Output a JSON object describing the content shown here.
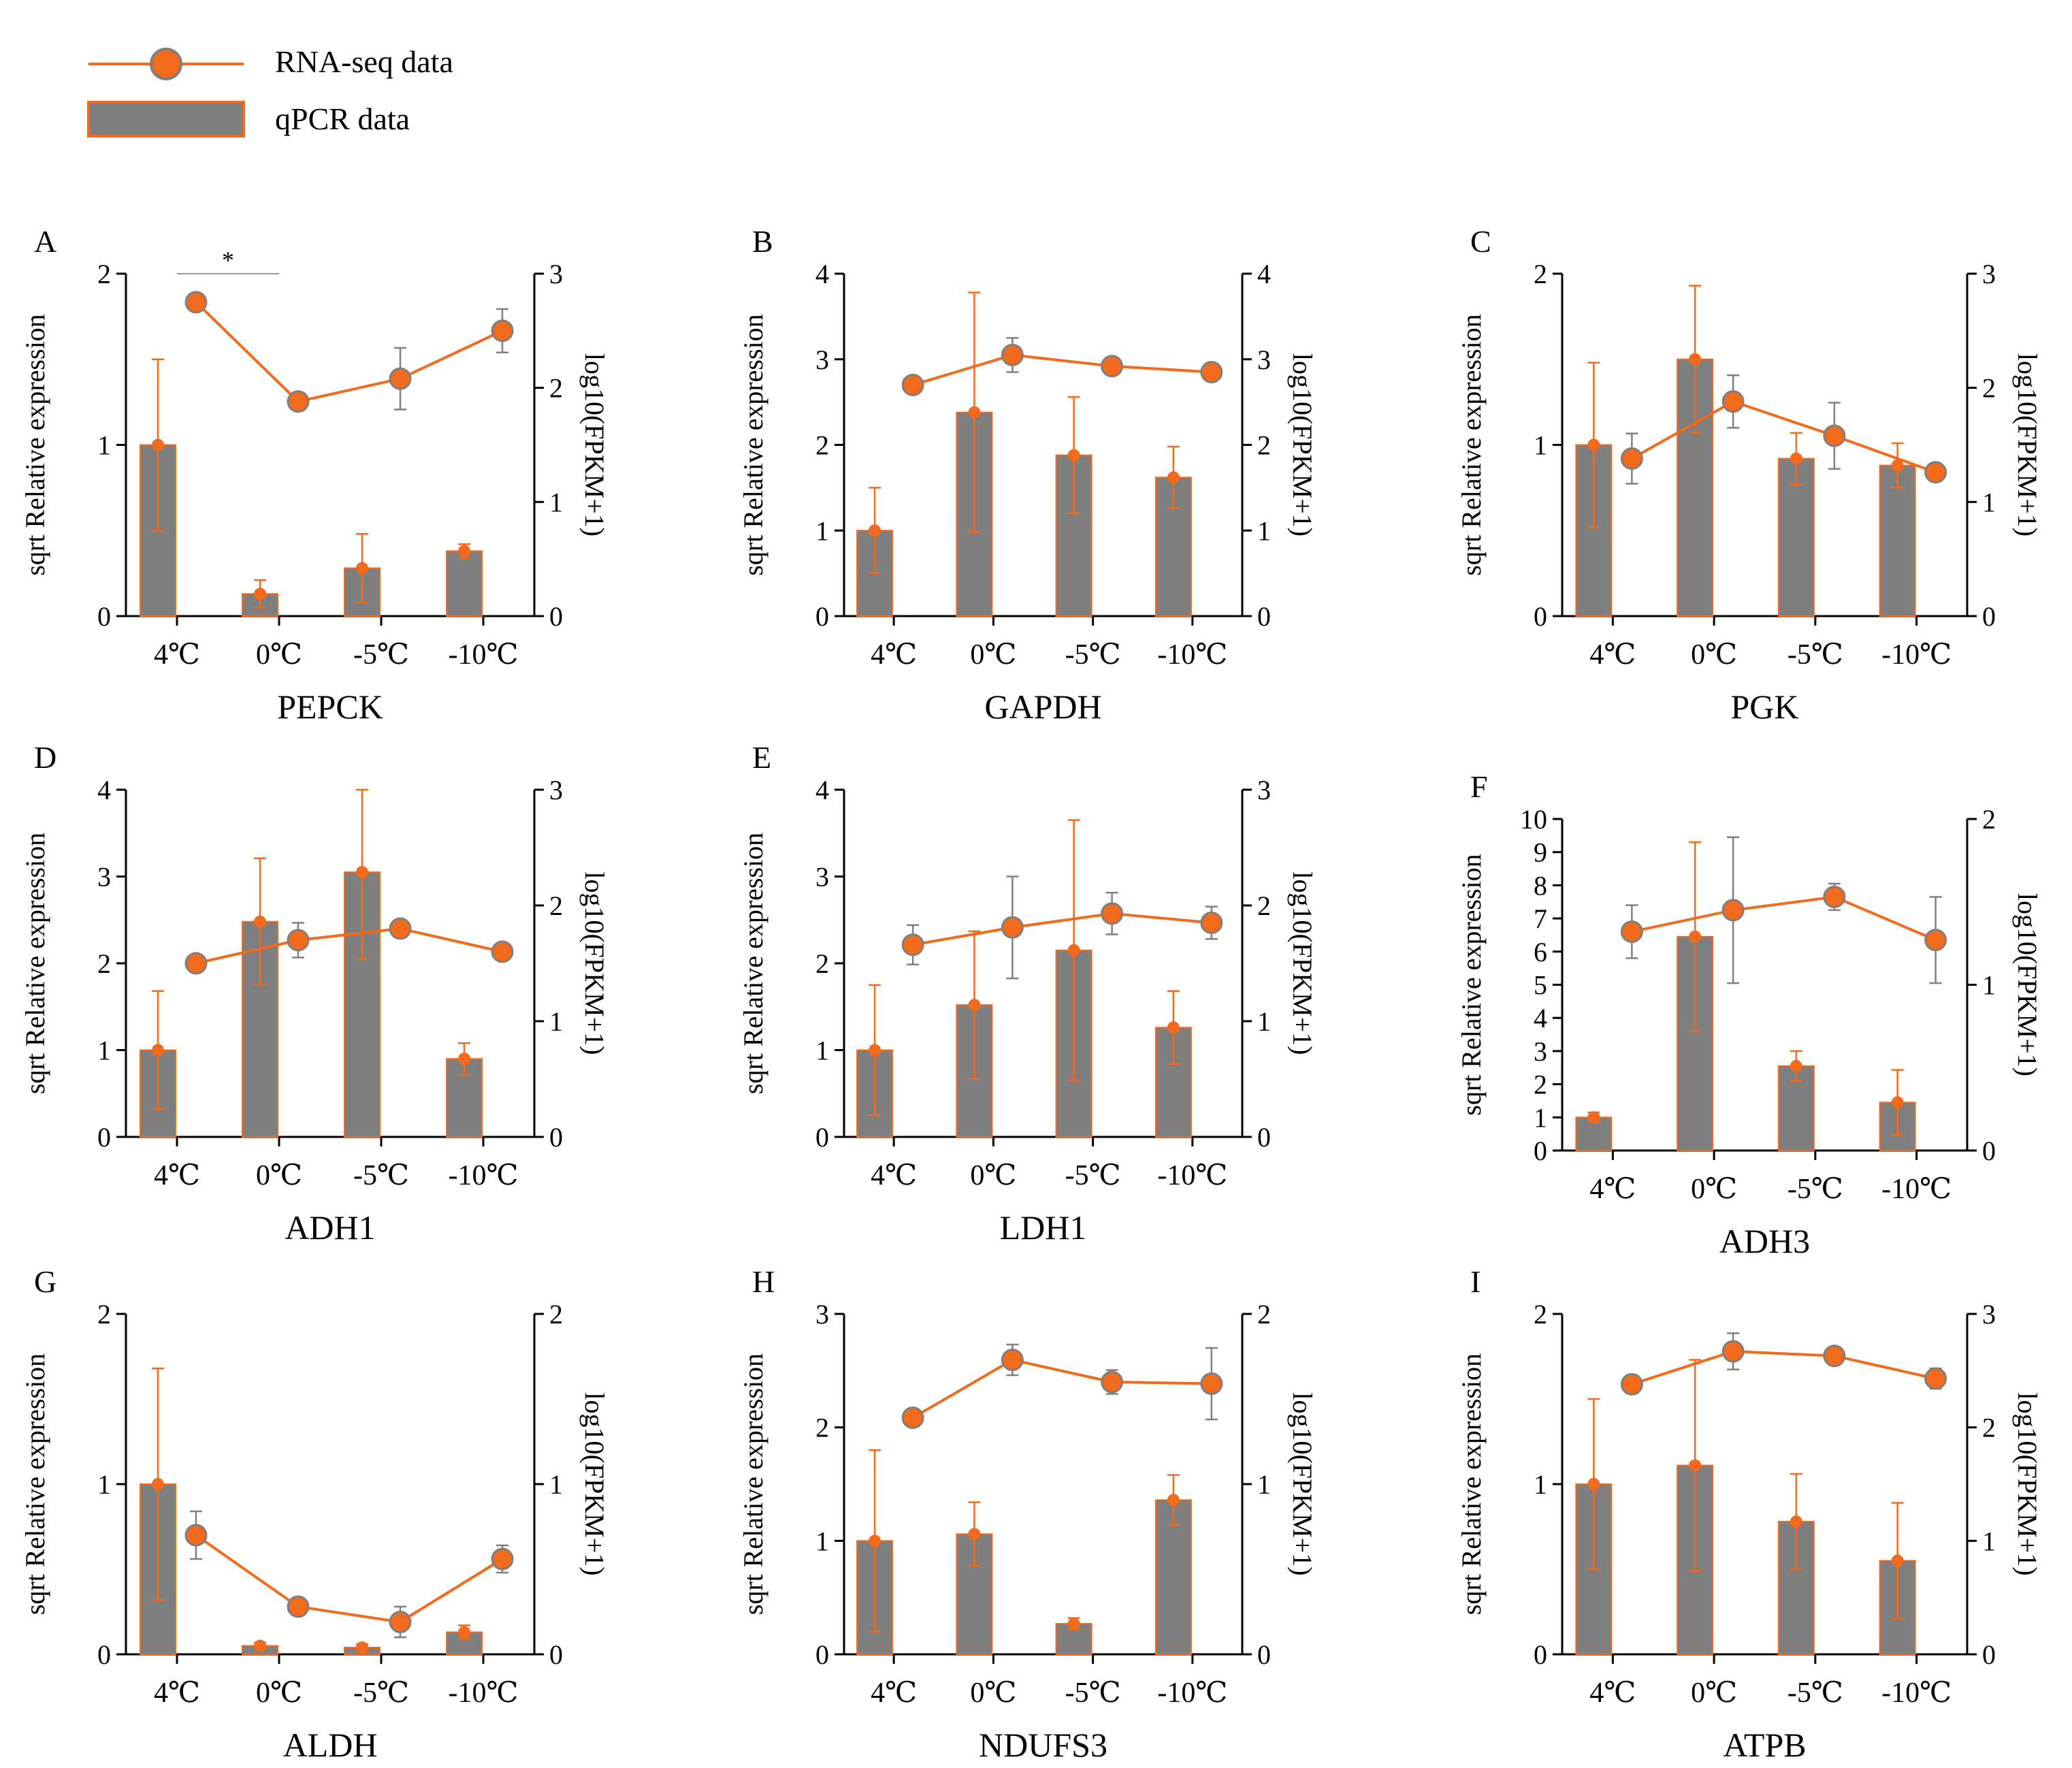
{
  "colors": {
    "line": "#F26A1B",
    "bar": "#7F7F7F",
    "bar_edge": "#F26A1B",
    "marker_edge": "#7F7F7F",
    "axis": "#000000",
    "error_bar_rna": "#7F7F7F"
  },
  "legend": {
    "rna_label": "RNA-seq data",
    "qpcr_label": "qPCR data"
  },
  "chart_data": [
    {
      "type": "bar",
      "panel": "A",
      "gene": "PEPCK",
      "categories": [
        "4℃",
        "0℃",
        "-5℃",
        "-10℃"
      ],
      "ylabel": "sqrt Relative expression",
      "y2label": "log10(FPKM+1)",
      "ylim": [
        0,
        2
      ],
      "yticks": [
        "0",
        "1",
        "2"
      ],
      "y2lim": [
        0,
        3
      ],
      "y2ticks": [
        "0",
        "1",
        "2",
        "3"
      ],
      "series": [
        {
          "name": "qPCR data",
          "kind": "bar",
          "axis": "left",
          "values": [
            1.0,
            0.13,
            0.28,
            0.38
          ],
          "err": [
            0.5,
            0.08,
            0.2,
            0.04
          ]
        },
        {
          "name": "RNA-seq data",
          "kind": "line",
          "axis": "right",
          "values": [
            2.75,
            1.88,
            2.08,
            2.5
          ],
          "err": [
            0,
            0.05,
            0.27,
            0.19
          ]
        }
      ],
      "annotations": [
        {
          "text": "*",
          "from": "4℃",
          "to": "0℃"
        }
      ]
    },
    {
      "type": "bar",
      "panel": "B",
      "gene": "GAPDH",
      "categories": [
        "4℃",
        "0℃",
        "-5℃",
        "-10℃"
      ],
      "ylabel": "sqrt Relative expression",
      "y2label": "log10(FPKM+1)",
      "ylim": [
        0,
        4
      ],
      "yticks": [
        "0",
        "1",
        "2",
        "3",
        "4"
      ],
      "y2lim": [
        0,
        4
      ],
      "y2ticks": [
        "0",
        "1",
        "2",
        "3",
        "4"
      ],
      "series": [
        {
          "name": "qPCR data",
          "kind": "bar",
          "axis": "left",
          "values": [
            1.0,
            2.38,
            1.88,
            1.62
          ],
          "err": [
            0.5,
            1.4,
            0.68,
            0.36
          ]
        },
        {
          "name": "RNA-seq data",
          "kind": "line",
          "axis": "right",
          "values": [
            2.7,
            3.05,
            2.92,
            2.85
          ],
          "err": [
            0,
            0.2,
            0,
            0.1
          ]
        }
      ],
      "annotations": []
    },
    {
      "type": "bar",
      "panel": "C",
      "gene": "PGK",
      "categories": [
        "4℃",
        "0℃",
        "-5℃",
        "-10℃"
      ],
      "ylabel": "sqrt Relative expression",
      "y2label": "log10(FPKM+1)",
      "ylim": [
        0,
        2
      ],
      "yticks": [
        "0",
        "1",
        "2"
      ],
      "y2lim": [
        0,
        3
      ],
      "y2ticks": [
        "0",
        "1",
        "2",
        "3"
      ],
      "series": [
        {
          "name": "qPCR data",
          "kind": "bar",
          "axis": "left",
          "values": [
            1.0,
            1.5,
            0.92,
            0.88
          ],
          "err": [
            0.48,
            0.43,
            0.15,
            0.13
          ]
        },
        {
          "name": "RNA-seq data",
          "kind": "line",
          "axis": "right",
          "values": [
            1.38,
            1.88,
            1.58,
            1.26
          ],
          "err": [
            0.22,
            0.23,
            0.29,
            0.05
          ]
        }
      ],
      "annotations": []
    },
    {
      "type": "bar",
      "panel": "D",
      "gene": "ADH1",
      "categories": [
        "4℃",
        "0℃",
        "-5℃",
        "-10℃"
      ],
      "ylabel": "sqrt Relative expression",
      "y2label": "log10(FPKM+1)",
      "ylim": [
        0,
        4
      ],
      "yticks": [
        "0",
        "1",
        "2",
        "3",
        "4"
      ],
      "y2lim": [
        0,
        3
      ],
      "y2ticks": [
        "0",
        "1",
        "2",
        "3"
      ],
      "series": [
        {
          "name": "qPCR data",
          "kind": "bar",
          "axis": "left",
          "values": [
            1.0,
            2.48,
            3.05,
            0.9
          ],
          "err": [
            0.68,
            0.73,
            1.0,
            0.18
          ]
        },
        {
          "name": "RNA-seq data",
          "kind": "line",
          "axis": "right",
          "values": [
            1.5,
            1.7,
            1.8,
            1.6
          ],
          "err": [
            0,
            0.15,
            0,
            0
          ]
        }
      ],
      "annotations": []
    },
    {
      "type": "bar",
      "panel": "E",
      "gene": "LDH1",
      "categories": [
        "4℃",
        "0℃",
        "-5℃",
        "-10℃"
      ],
      "ylabel": "sqrt Relative expression",
      "y2label": "log10(FPKM+1)",
      "ylim": [
        0,
        4
      ],
      "yticks": [
        "0",
        "1",
        "2",
        "3",
        "4"
      ],
      "y2lim": [
        0,
        3
      ],
      "y2ticks": [
        "0",
        "1",
        "2",
        "3"
      ],
      "series": [
        {
          "name": "qPCR data",
          "kind": "bar",
          "axis": "left",
          "values": [
            1.0,
            1.52,
            2.15,
            1.26
          ],
          "err": [
            0.75,
            0.85,
            1.5,
            0.42
          ]
        },
        {
          "name": "RNA-seq data",
          "kind": "line",
          "axis": "right",
          "values": [
            1.66,
            1.81,
            1.93,
            1.85
          ],
          "err": [
            0.17,
            0.44,
            0.18,
            0.14
          ]
        }
      ],
      "annotations": []
    },
    {
      "type": "bar",
      "panel": "F",
      "gene": "ADH3",
      "categories": [
        "4℃",
        "0℃",
        "-5℃",
        "-10℃"
      ],
      "ylabel": "sqrt Relative expression",
      "y2label": "log10(FPKM+1)",
      "ylim": [
        0,
        10
      ],
      "yticks": [
        "0",
        "1",
        "2",
        "3",
        "4",
        "5",
        "6",
        "7",
        "8",
        "9",
        "10"
      ],
      "y2lim": [
        0,
        2
      ],
      "y2ticks": [
        "0",
        "1",
        "2"
      ],
      "series": [
        {
          "name": "qPCR data",
          "kind": "bar",
          "axis": "left",
          "values": [
            1.0,
            6.45,
            2.55,
            1.45
          ],
          "err": [
            0.15,
            2.85,
            0.45,
            0.98
          ]
        },
        {
          "name": "RNA-seq data",
          "kind": "line",
          "axis": "right",
          "values": [
            1.32,
            1.45,
            1.53,
            1.27
          ],
          "err": [
            0.16,
            0.44,
            0.08,
            0.26
          ]
        }
      ],
      "annotations": []
    },
    {
      "type": "bar",
      "panel": "G",
      "gene": "ALDH",
      "categories": [
        "4℃",
        "0℃",
        "-5℃",
        "-10℃"
      ],
      "ylabel": "sqrt Relative expression",
      "y2label": "log10(FPKM+1)",
      "ylim": [
        0,
        2
      ],
      "yticks": [
        "0",
        "1",
        "2"
      ],
      "y2lim": [
        0,
        2
      ],
      "y2ticks": [
        "0",
        "1",
        "2"
      ],
      "series": [
        {
          "name": "qPCR data",
          "kind": "bar",
          "axis": "left",
          "values": [
            1.0,
            0.05,
            0.04,
            0.13
          ],
          "err": [
            0.68,
            0.02,
            0.02,
            0.04
          ]
        },
        {
          "name": "RNA-seq data",
          "kind": "line",
          "axis": "right",
          "values": [
            0.7,
            0.28,
            0.19,
            0.56
          ],
          "err": [
            0.14,
            0,
            0.09,
            0.08
          ]
        }
      ],
      "annotations": []
    },
    {
      "type": "bar",
      "panel": "H",
      "gene": "NDUFS3",
      "categories": [
        "4℃",
        "0℃",
        "-5℃",
        "-10℃"
      ],
      "ylabel": "sqrt Relative expression",
      "y2label": "log10(FPKM+1)",
      "ylim": [
        0,
        3
      ],
      "yticks": [
        "0",
        "1",
        "2",
        "3"
      ],
      "y2lim": [
        0,
        2
      ],
      "y2ticks": [
        "0",
        "1",
        "2"
      ],
      "series": [
        {
          "name": "qPCR data",
          "kind": "bar",
          "axis": "left",
          "values": [
            1.0,
            1.06,
            0.27,
            1.36
          ],
          "err": [
            0.8,
            0.28,
            0.05,
            0.22
          ]
        },
        {
          "name": "RNA-seq data",
          "kind": "line",
          "axis": "right",
          "values": [
            1.39,
            1.73,
            1.6,
            1.59
          ],
          "err": [
            0,
            0.09,
            0.07,
            0.21
          ]
        }
      ],
      "annotations": []
    },
    {
      "type": "bar",
      "panel": "I",
      "gene": "ATPB",
      "categories": [
        "4℃",
        "0℃",
        "-5℃",
        "-10℃"
      ],
      "ylabel": "sqrt Relative expression",
      "y2label": "log10(FPKM+1)",
      "ylim": [
        0,
        2
      ],
      "yticks": [
        "0",
        "1",
        "2"
      ],
      "y2lim": [
        0,
        3
      ],
      "y2ticks": [
        "0",
        "1",
        "2",
        "3"
      ],
      "series": [
        {
          "name": "qPCR data",
          "kind": "bar",
          "axis": "left",
          "values": [
            1.0,
            1.11,
            0.78,
            0.55
          ],
          "err": [
            0.5,
            0.62,
            0.28,
            0.34
          ]
        },
        {
          "name": "RNA-seq data",
          "kind": "line",
          "axis": "right",
          "values": [
            2.38,
            2.67,
            2.63,
            2.43
          ],
          "err": [
            0.08,
            0.16,
            0,
            0.09
          ]
        }
      ],
      "annotations": []
    }
  ]
}
